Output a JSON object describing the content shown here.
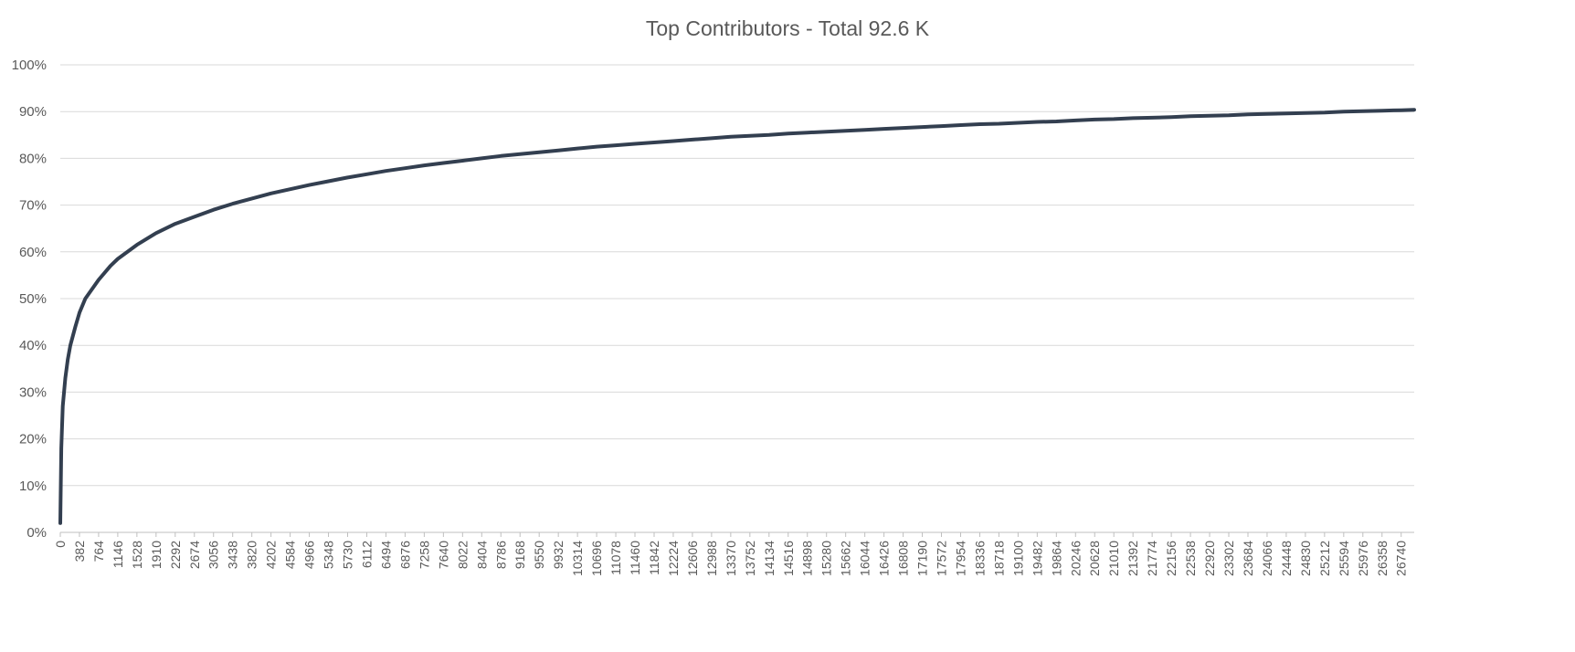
{
  "chart_data": {
    "type": "line",
    "title": "Top Contributors - Total 92.6 K",
    "xlabel": "",
    "ylabel": "",
    "ylim": [
      0,
      100
    ],
    "y_ticks": [
      "0%",
      "10%",
      "20%",
      "30%",
      "40%",
      "50%",
      "60%",
      "70%",
      "80%",
      "90%",
      "100%"
    ],
    "xlim": [
      0,
      27000
    ],
    "x_ticks": [
      0,
      382,
      764,
      1146,
      1528,
      1910,
      2292,
      2674,
      3056,
      3438,
      3820,
      4202,
      4584,
      4966,
      5348,
      5730,
      6112,
      6494,
      6876,
      7258,
      7640,
      8022,
      8404,
      8786,
      9168,
      9550,
      9932,
      10314,
      10696,
      11078,
      11460,
      11842,
      12224,
      12606,
      12988,
      13370,
      13752,
      14134,
      14516,
      14898,
      15280,
      15662,
      16044,
      16426,
      16808,
      17190,
      17572,
      17954,
      18336,
      18718,
      19100,
      19482,
      19864,
      20246,
      20628,
      21010,
      21392,
      21774,
      22156,
      22538,
      22920,
      23302,
      23684,
      24066,
      24448,
      24830,
      25212,
      25594,
      25976,
      26358,
      26740
    ],
    "grid": true,
    "legend": "none",
    "line_color": "#333f50",
    "series": [
      {
        "x": [
          0,
          20,
          50,
          100,
          150,
          200,
          300,
          382,
          500,
          764,
          1000,
          1146,
          1528,
          1910,
          2292,
          2674,
          3056,
          3438,
          3820,
          4202,
          4584,
          4966,
          5348,
          5730,
          6112,
          6494,
          6876,
          7258,
          7640,
          8022,
          8404,
          8786,
          9168,
          9550,
          9932,
          10314,
          10696,
          11078,
          11460,
          11842,
          12224,
          12606,
          12988,
          13370,
          13752,
          14134,
          14516,
          14898,
          15280,
          15662,
          16044,
          16426,
          16808,
          17190,
          17572,
          17954,
          18336,
          18718,
          19100,
          19482,
          19864,
          20246,
          20628,
          21010,
          21392,
          21774,
          22156,
          22538,
          22920,
          23302,
          23684,
          24066,
          24448,
          24830,
          25212,
          25594,
          25976,
          26358,
          26740,
          27000
        ],
        "y": [
          2,
          18,
          27,
          33,
          37,
          40,
          44,
          47,
          50,
          54,
          57,
          58.5,
          61.5,
          64,
          66,
          67.5,
          69,
          70.3,
          71.4,
          72.5,
          73.4,
          74.3,
          75.1,
          75.9,
          76.6,
          77.3,
          77.9,
          78.5,
          79,
          79.5,
          80,
          80.5,
          80.9,
          81.3,
          81.7,
          82.1,
          82.5,
          82.8,
          83.1,
          83.4,
          83.7,
          84,
          84.3,
          84.6,
          84.8,
          85,
          85.3,
          85.5,
          85.7,
          85.9,
          86.1,
          86.3,
          86.5,
          86.7,
          86.9,
          87.1,
          87.3,
          87.4,
          87.6,
          87.8,
          87.9,
          88.1,
          88.3,
          88.4,
          88.6,
          88.7,
          88.8,
          89,
          89.1,
          89.2,
          89.4,
          89.5,
          89.6,
          89.7,
          89.8,
          90,
          90.1,
          90.2,
          90.3,
          90.4
        ]
      }
    ]
  }
}
